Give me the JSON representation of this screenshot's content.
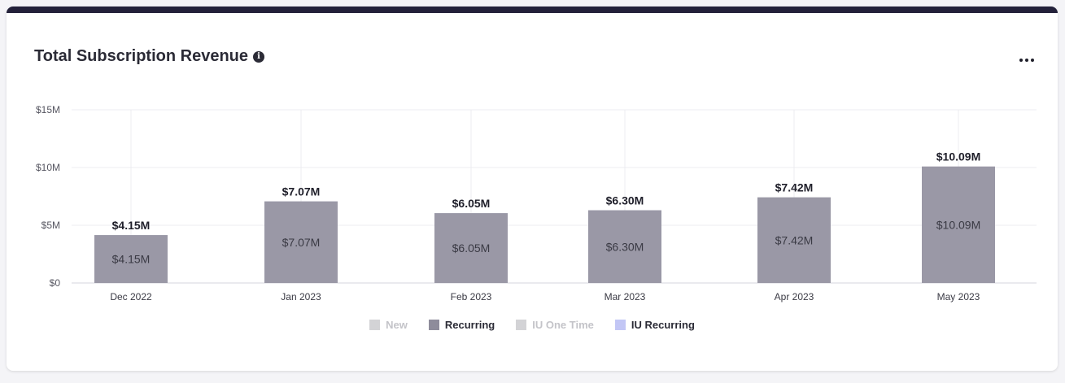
{
  "header": {
    "title": "Total Subscription Revenue",
    "info_icon": "info-icon",
    "menu_icon": "more-horizontal-icon"
  },
  "chart_data": {
    "type": "bar",
    "title": "Total Subscription Revenue",
    "categories": [
      "Dec 2022",
      "Jan 2023",
      "Feb 2023",
      "Mar 2023",
      "Apr 2023",
      "May 2023"
    ],
    "series": [
      {
        "name": "New",
        "values": [
          0,
          0,
          0,
          0,
          0,
          0
        ],
        "color": "#cfcfd4",
        "hidden": true
      },
      {
        "name": "Recurring",
        "values": [
          4.15,
          7.07,
          6.05,
          6.3,
          7.42,
          10.09
        ],
        "color": "#9a98a6",
        "hidden": false
      },
      {
        "name": "IU One Time",
        "values": [
          0,
          0,
          0,
          0,
          0,
          0
        ],
        "color": "#cfcfd4",
        "hidden": true
      },
      {
        "name": "IU Recurring",
        "values": [
          0,
          0,
          0,
          0,
          0,
          0
        ],
        "color": "#c2c6f5",
        "hidden": false
      }
    ],
    "total_labels": [
      "$4.15M",
      "$7.07M",
      "$6.05M",
      "$6.30M",
      "$7.42M",
      "$10.09M"
    ],
    "segment_labels": [
      "$4.15M",
      "$7.07M",
      "$6.05M",
      "$6.30M",
      "$7.42M",
      "$10.09M"
    ],
    "yticks": [
      0,
      5,
      10,
      15
    ],
    "ytick_labels": [
      "$0",
      "$5M",
      "$10M",
      "$15M"
    ],
    "ylim": [
      0,
      15
    ],
    "xlabel": "",
    "ylabel": "",
    "grid": true,
    "legend_position": "bottom"
  },
  "legend": [
    {
      "label": "New",
      "color": "#d3d3d6",
      "text_color": "#c4c4c9"
    },
    {
      "label": "Recurring",
      "color": "#8e8c9b",
      "text_color": "#2b2b36"
    },
    {
      "label": "IU One Time",
      "color": "#d3d3d6",
      "text_color": "#c4c4c9"
    },
    {
      "label": "IU Recurring",
      "color": "#c2c6f5",
      "text_color": "#2b2b36"
    }
  ]
}
